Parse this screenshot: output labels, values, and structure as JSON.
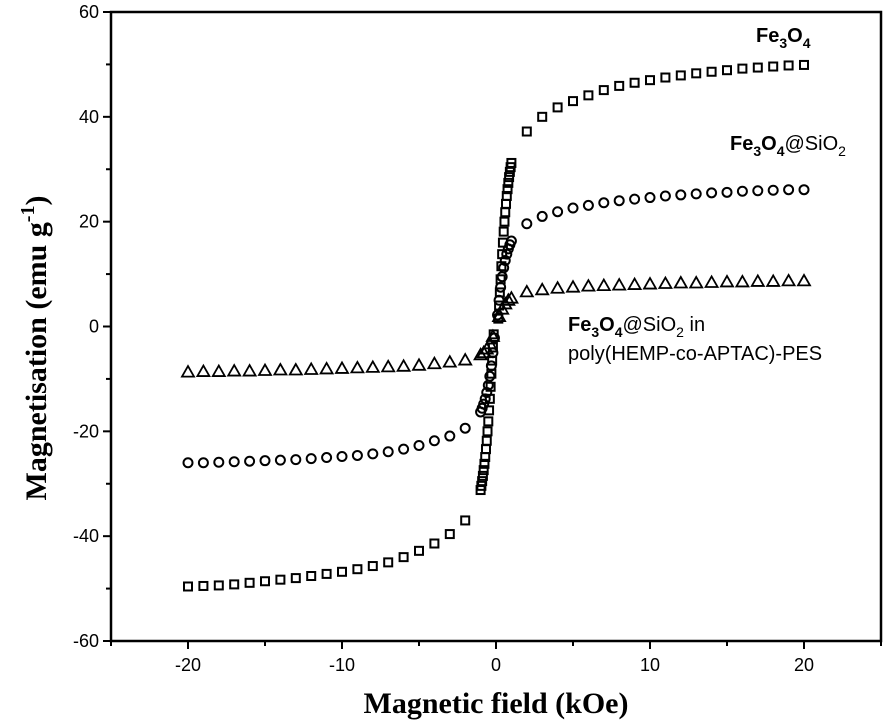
{
  "chart_data": {
    "type": "scatter",
    "xlabel": "Magnetic field (kOe)",
    "ylabel_main": "Magnetisation (emu g",
    "ylabel_sup": "-1",
    "ylabel_close": ")",
    "xlim": [
      -25,
      25
    ],
    "ylim": [
      -60,
      60
    ],
    "xticks": [
      -20,
      -10,
      0,
      10,
      20
    ],
    "yticks": [
      -60,
      -40,
      -20,
      0,
      20,
      40,
      60
    ],
    "grid": false,
    "annotations": {
      "fe3o4": {
        "p1": "Fe",
        "s1": "3",
        "p2": "O",
        "s2": "4"
      },
      "fe3o4_sio2": {
        "p1": "Fe",
        "s1": "3",
        "p2": "O",
        "s2": "4",
        "p3": "@SiO",
        "s3": "2"
      },
      "fe3o4_sio2_pes": {
        "p1": "Fe",
        "s1": "3",
        "p2": "O",
        "s2": "4",
        "p3": "@SiO",
        "s3": "2",
        "p4": " in",
        "line2": "poly(HEMP-co-APTAC)-PES"
      }
    },
    "series": [
      {
        "marker": "square",
        "points": [
          [
            -20,
            -49.6
          ],
          [
            -19,
            -49.5
          ],
          [
            -18,
            -49.4
          ],
          [
            -17,
            -49.2
          ],
          [
            -16,
            -48.9
          ],
          [
            -15,
            -48.6
          ],
          [
            -14,
            -48.3
          ],
          [
            -13,
            -48.0
          ],
          [
            -12,
            -47.6
          ],
          [
            -11,
            -47.2
          ],
          [
            -10,
            -46.8
          ],
          [
            -9,
            -46.3
          ],
          [
            -8,
            -45.7
          ],
          [
            -7,
            -45.0
          ],
          [
            -6,
            -44.0
          ],
          [
            -5,
            -42.8
          ],
          [
            -4,
            -41.4
          ],
          [
            -3,
            -39.6
          ],
          [
            -2,
            -37.0
          ],
          [
            -1.0,
            -31.2
          ],
          [
            -0.95,
            -30.4
          ],
          [
            -0.9,
            -29.5
          ],
          [
            -0.85,
            -28.5
          ],
          [
            -0.8,
            -27.4
          ],
          [
            -0.75,
            -26.2
          ],
          [
            -0.7,
            -24.9
          ],
          [
            -0.65,
            -23.4
          ],
          [
            -0.6,
            -21.8
          ],
          [
            -0.55,
            -20.0
          ],
          [
            -0.5,
            -18.1
          ],
          [
            -0.45,
            -16.0
          ],
          [
            -0.4,
            -13.8
          ],
          [
            -0.35,
            -11.5
          ],
          [
            -0.3,
            -9.0
          ],
          [
            -0.25,
            -6.5
          ],
          [
            -0.2,
            -4.0
          ],
          [
            -0.15,
            -1.5
          ],
          [
            0.15,
            1.5
          ],
          [
            0.2,
            4.0
          ],
          [
            0.25,
            6.5
          ],
          [
            0.3,
            9.0
          ],
          [
            0.35,
            11.5
          ],
          [
            0.4,
            13.8
          ],
          [
            0.45,
            16.0
          ],
          [
            0.5,
            18.1
          ],
          [
            0.55,
            20.0
          ],
          [
            0.6,
            21.8
          ],
          [
            0.65,
            23.4
          ],
          [
            0.7,
            24.9
          ],
          [
            0.75,
            26.2
          ],
          [
            0.8,
            27.4
          ],
          [
            0.85,
            28.5
          ],
          [
            0.9,
            29.5
          ],
          [
            0.95,
            30.4
          ],
          [
            1.0,
            31.2
          ],
          [
            2,
            37.2
          ],
          [
            3,
            40.0
          ],
          [
            4,
            41.8
          ],
          [
            5,
            43.0
          ],
          [
            6,
            44.1
          ],
          [
            7,
            45.1
          ],
          [
            8,
            45.9
          ],
          [
            9,
            46.5
          ],
          [
            10,
            47.0
          ],
          [
            11,
            47.5
          ],
          [
            12,
            47.9
          ],
          [
            13,
            48.3
          ],
          [
            14,
            48.6
          ],
          [
            15,
            48.9
          ],
          [
            16,
            49.2
          ],
          [
            17,
            49.4
          ],
          [
            18,
            49.6
          ],
          [
            19,
            49.8
          ],
          [
            20,
            49.9
          ]
        ]
      },
      {
        "marker": "circle",
        "points": [
          [
            -20,
            -26.0
          ],
          [
            -19,
            -26.0
          ],
          [
            -18,
            -25.9
          ],
          [
            -17,
            -25.8
          ],
          [
            -16,
            -25.7
          ],
          [
            -15,
            -25.6
          ],
          [
            -14,
            -25.5
          ],
          [
            -13,
            -25.4
          ],
          [
            -12,
            -25.2
          ],
          [
            -11,
            -25.0
          ],
          [
            -10,
            -24.8
          ],
          [
            -9,
            -24.6
          ],
          [
            -8,
            -24.3
          ],
          [
            -7,
            -23.9
          ],
          [
            -6,
            -23.4
          ],
          [
            -5,
            -22.7
          ],
          [
            -4,
            -21.8
          ],
          [
            -3,
            -20.9
          ],
          [
            -2,
            -19.4
          ],
          [
            -1.0,
            -16.3
          ],
          [
            -0.9,
            -15.6
          ],
          [
            -0.8,
            -14.8
          ],
          [
            -0.7,
            -13.8
          ],
          [
            -0.6,
            -12.6
          ],
          [
            -0.5,
            -11.2
          ],
          [
            -0.4,
            -9.5
          ],
          [
            -0.3,
            -7.5
          ],
          [
            -0.2,
            -5.0
          ],
          [
            -0.1,
            -2.2
          ],
          [
            0.1,
            2.2
          ],
          [
            0.2,
            5.0
          ],
          [
            0.3,
            7.5
          ],
          [
            0.4,
            9.5
          ],
          [
            0.5,
            11.2
          ],
          [
            0.6,
            12.6
          ],
          [
            0.7,
            13.8
          ],
          [
            0.8,
            14.8
          ],
          [
            0.9,
            15.6
          ],
          [
            1.0,
            16.3
          ],
          [
            2,
            19.6
          ],
          [
            3,
            21.0
          ],
          [
            4,
            21.9
          ],
          [
            5,
            22.6
          ],
          [
            6,
            23.1
          ],
          [
            7,
            23.6
          ],
          [
            8,
            24.0
          ],
          [
            9,
            24.3
          ],
          [
            10,
            24.6
          ],
          [
            11,
            24.9
          ],
          [
            12,
            25.1
          ],
          [
            13,
            25.3
          ],
          [
            14,
            25.5
          ],
          [
            15,
            25.6
          ],
          [
            16,
            25.8
          ],
          [
            17,
            25.9
          ],
          [
            18,
            26.0
          ],
          [
            19,
            26.1
          ],
          [
            20,
            26.1
          ]
        ]
      },
      {
        "marker": "triangle",
        "points": [
          [
            -20,
            -8.7
          ],
          [
            -19,
            -8.6
          ],
          [
            -18,
            -8.6
          ],
          [
            -17,
            -8.5
          ],
          [
            -16,
            -8.5
          ],
          [
            -15,
            -8.4
          ],
          [
            -14,
            -8.3
          ],
          [
            -13,
            -8.3
          ],
          [
            -12,
            -8.2
          ],
          [
            -11,
            -8.1
          ],
          [
            -10,
            -8.0
          ],
          [
            -9,
            -7.9
          ],
          [
            -8,
            -7.8
          ],
          [
            -7,
            -7.7
          ],
          [
            -6,
            -7.6
          ],
          [
            -5,
            -7.4
          ],
          [
            -4,
            -7.1
          ],
          [
            -3,
            -6.8
          ],
          [
            -2,
            -6.4
          ],
          [
            -1,
            -5.4
          ],
          [
            -0.8,
            -5.0
          ],
          [
            -0.6,
            -4.3
          ],
          [
            -0.4,
            -3.3
          ],
          [
            -0.2,
            -1.9
          ],
          [
            0.2,
            1.9
          ],
          [
            0.4,
            3.3
          ],
          [
            0.6,
            4.3
          ],
          [
            0.8,
            5.0
          ],
          [
            1,
            5.4
          ],
          [
            2,
            6.6
          ],
          [
            3,
            7.0
          ],
          [
            4,
            7.3
          ],
          [
            5,
            7.5
          ],
          [
            6,
            7.7
          ],
          [
            7,
            7.8
          ],
          [
            8,
            7.9
          ],
          [
            9,
            8.0
          ],
          [
            10,
            8.1
          ],
          [
            11,
            8.2
          ],
          [
            12,
            8.3
          ],
          [
            13,
            8.3
          ],
          [
            14,
            8.4
          ],
          [
            15,
            8.5
          ],
          [
            16,
            8.5
          ],
          [
            17,
            8.6
          ],
          [
            18,
            8.6
          ],
          [
            19,
            8.7
          ],
          [
            20,
            8.7
          ]
        ]
      }
    ]
  }
}
